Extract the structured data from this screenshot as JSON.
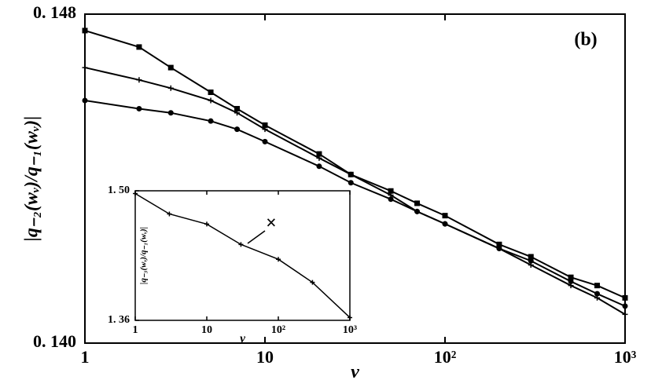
{
  "chart_data": [
    {
      "type": "line",
      "label": "(b)",
      "xlabel": "ν",
      "ylabel": "|q₋₂(wᵥ)/q₋₁(wᵥ)|",
      "xscale": "log",
      "xlim": [
        1,
        1000
      ],
      "ylim": [
        0.14,
        0.148
      ],
      "xticks": [
        1,
        10,
        {
          "value": 100,
          "label": "10²"
        },
        {
          "value": 1000,
          "label": "10³"
        }
      ],
      "yticks": [
        {
          "value": 0.14,
          "label": "0. 140"
        },
        {
          "value": 0.148,
          "label": "0. 148"
        }
      ],
      "x": [
        1,
        2,
        3,
        5,
        7,
        10,
        20,
        30,
        50,
        70,
        100,
        200,
        300,
        500,
        700,
        1000
      ],
      "series": [
        {
          "color": "#000000",
          "marker": "square",
          "values": [
            0.1476,
            0.1472,
            0.1467,
            0.1461,
            0.1457,
            0.1453,
            0.1446,
            0.1441,
            0.1437,
            0.1434,
            0.1431,
            0.1424,
            0.1421,
            0.1416,
            0.1414,
            0.1411
          ]
        },
        {
          "color": "#000000",
          "marker": "plus",
          "values": [
            0.1467,
            0.1464,
            0.1462,
            0.1459,
            0.1456,
            0.1452,
            0.1445,
            0.1441,
            0.1436,
            0.1432,
            0.1429,
            0.1423,
            0.1419,
            0.1414,
            0.1411,
            0.1407
          ]
        },
        {
          "color": "#000000",
          "marker": "circle",
          "values": [
            0.1459,
            0.1457,
            0.1456,
            0.1454,
            0.1452,
            0.1449,
            0.1443,
            0.1439,
            0.1435,
            0.1432,
            0.1429,
            0.1423,
            0.142,
            0.1415,
            0.1412,
            0.1409
          ]
        }
      ]
    },
    {
      "type": "line",
      "xlabel": "ν",
      "ylabel": "|q₋₃(wᵥ)/q₋₁(wᵥ)|",
      "annotation": "×",
      "xscale": "log",
      "xlim": [
        1,
        1000
      ],
      "ylim": [
        1.36,
        1.5
      ],
      "xticks": [
        1,
        10,
        {
          "value": 100,
          "label": "10²"
        },
        {
          "value": 1000,
          "label": "10³"
        }
      ],
      "yticks": [
        {
          "value": 1.36,
          "label": "1. 36"
        },
        {
          "value": 1.5,
          "label": "1. 50"
        }
      ],
      "x": [
        1,
        3,
        10,
        30,
        100,
        300,
        1000
      ],
      "series": [
        {
          "color": "#000000",
          "marker": "plus",
          "values": [
            1.497,
            1.475,
            1.464,
            1.442,
            1.426,
            1.401,
            1.363
          ]
        }
      ]
    }
  ]
}
